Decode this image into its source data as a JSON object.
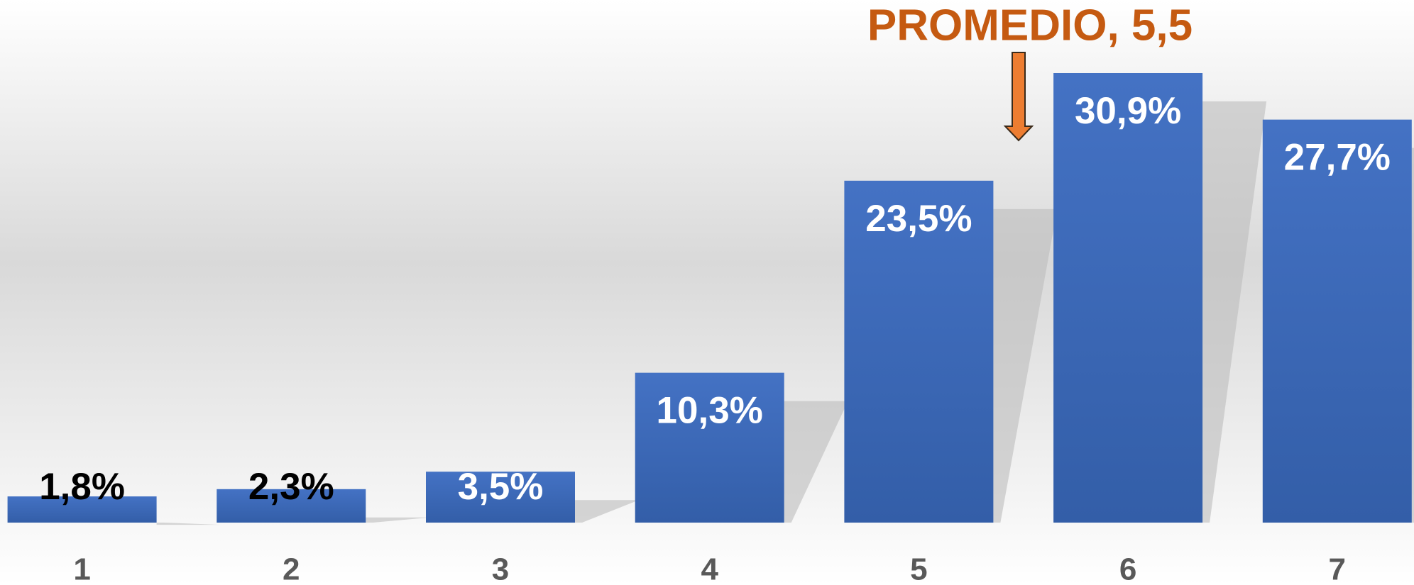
{
  "chart_data": {
    "type": "bar",
    "annotation": "PROMEDIO, 5,5",
    "categories": [
      "1",
      "2",
      "3",
      "4",
      "5",
      "6",
      "7"
    ],
    "values": [
      1.8,
      2.3,
      3.5,
      10.3,
      23.5,
      30.9,
      27.7
    ],
    "value_labels": [
      "1,8%",
      "2,3%",
      "3,5%",
      "10,3%",
      "23,5%",
      "30,9%",
      "27,7%"
    ],
    "value_label_colors": [
      "#000000",
      "#000000",
      "#ffffff",
      "#ffffff",
      "#ffffff",
      "#ffffff",
      "#ffffff"
    ],
    "color": "#3f6cc0"
  }
}
